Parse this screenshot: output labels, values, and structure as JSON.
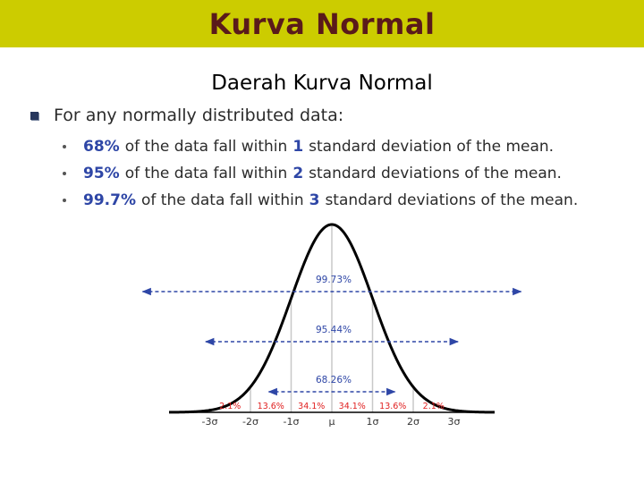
{
  "header": {
    "title": "Kurva Normal"
  },
  "subtitle": "Daerah Kurva Normal",
  "intro": "For any normally distributed data:",
  "bullets": [
    {
      "pct": "68%",
      "text_a": "of the data fall within",
      "num": "1",
      "text_b": "standard deviation of the mean."
    },
    {
      "pct": "95%",
      "text_a": "of the data fall within",
      "num": "2",
      "text_b": "standard deviations of the mean."
    },
    {
      "pct": "99.7%",
      "text_a": "of the data fall within",
      "num": "3",
      "text_b": "standard deviations of the mean."
    }
  ],
  "diagram": {
    "ranges": [
      {
        "label": "99.73%",
        "sigma": 3
      },
      {
        "label": "95.44%",
        "sigma": 2
      },
      {
        "label": "68.26%",
        "sigma": 1
      }
    ],
    "regions": [
      {
        "label": "2.1%",
        "from": -3,
        "to": -2,
        "color": "red"
      },
      {
        "label": "13.6%",
        "from": -2,
        "to": -1,
        "color": "red"
      },
      {
        "label": "34.1%",
        "from": -1,
        "to": 0,
        "color": "red"
      },
      {
        "label": "34.1%",
        "from": 0,
        "to": 1,
        "color": "red"
      },
      {
        "label": "13.6%",
        "from": 1,
        "to": 2,
        "color": "red"
      },
      {
        "label": "2.1%",
        "from": 2,
        "to": 3,
        "color": "red"
      }
    ],
    "ticks": [
      "-3σ",
      "-2σ",
      "-1σ",
      "μ",
      "1σ",
      "2σ",
      "3σ"
    ],
    "colors": {
      "curve": "#000000",
      "arrows": "#2e46a6",
      "regions": "#e02020",
      "lines": "#c8c8c8"
    }
  }
}
